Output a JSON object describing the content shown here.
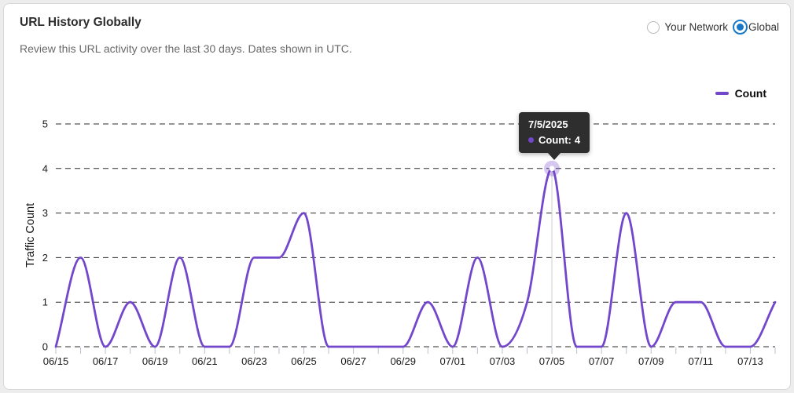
{
  "header": {
    "title": "URL History Globally",
    "subtitle": "Review this URL activity over the last 30 days. Dates shown in UTC."
  },
  "toggle": {
    "options": [
      {
        "label": "Your Network",
        "selected": false
      },
      {
        "label": "Global",
        "selected": true
      }
    ]
  },
  "legend": {
    "label": "Count"
  },
  "tooltip": {
    "date": "7/5/2025",
    "count_label": "Count:",
    "count_value": "4"
  },
  "colors": {
    "accent": "#7347CB",
    "radio_blue": "#1878C8",
    "tooltip_bg": "#2E2E2E",
    "gridline": "#2b2b2b",
    "tick": "#b7c3d1",
    "crosshair": "#cdcdcd",
    "axis_text": "#1a1a1a"
  },
  "chart_data": {
    "type": "line",
    "title": "",
    "xlabel": "",
    "ylabel": "Traffic Count",
    "ylim": [
      0,
      5
    ],
    "yticks": [
      0,
      1,
      2,
      3,
      4,
      5
    ],
    "grid": "dashed horizontal",
    "legend_position": "top-right",
    "x_label_every": 2,
    "x": [
      "06/15",
      "06/16",
      "06/17",
      "06/18",
      "06/19",
      "06/20",
      "06/21",
      "06/22",
      "06/23",
      "06/24",
      "06/25",
      "06/26",
      "06/27",
      "06/28",
      "06/29",
      "06/30",
      "07/01",
      "07/02",
      "07/03",
      "07/04",
      "07/05",
      "07/06",
      "07/07",
      "07/08",
      "07/09",
      "07/10",
      "07/11",
      "07/12",
      "07/13",
      "07/14"
    ],
    "series": [
      {
        "name": "Count",
        "values": [
          0,
          2,
          0,
          1,
          0,
          2,
          0,
          0,
          2,
          2,
          3,
          0,
          0,
          0,
          0,
          1,
          0,
          2,
          0,
          1,
          4,
          0,
          0,
          3,
          0,
          1,
          1,
          0,
          0,
          1
        ]
      }
    ],
    "highlight": {
      "index": 20,
      "date_label": "7/5/2025",
      "value": 4
    }
  }
}
